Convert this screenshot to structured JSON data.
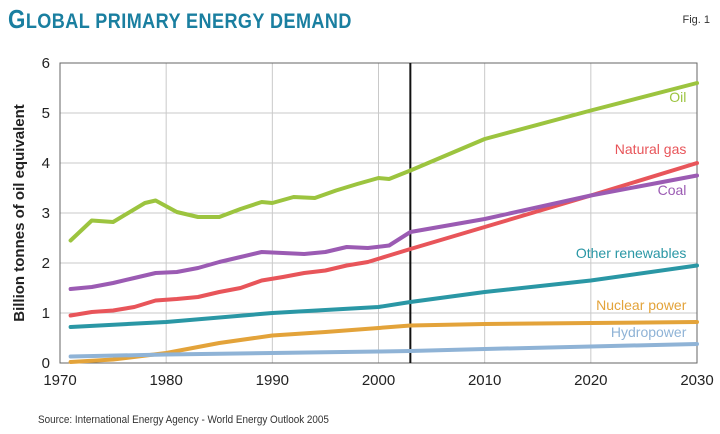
{
  "header": {
    "title": "Global primary energy demand",
    "fig_label": "Fig. 1"
  },
  "source": "Source: International Energy Agency - World Energy Outlook 2005",
  "chart_data": {
    "type": "line",
    "title": "Global primary energy demand",
    "xlabel": "",
    "ylabel": "Billion tonnes of oil equivalent",
    "xlim": [
      1970,
      2030
    ],
    "ylim": [
      0,
      6
    ],
    "x_ticks": [
      1970,
      1980,
      1990,
      2000,
      2010,
      2020,
      2030
    ],
    "y_ticks": [
      0,
      1,
      2,
      3,
      4,
      5,
      6
    ],
    "grid": true,
    "divider_year": 2003,
    "series": [
      {
        "name": "Oil",
        "color": "#9cc43f",
        "x": [
          1971,
          1973,
          1975,
          1978,
          1979,
          1981,
          1983,
          1985,
          1987,
          1989,
          1990,
          1992,
          1994,
          1996,
          1998,
          2000,
          2001,
          2003,
          2010,
          2020,
          2030
        ],
        "y": [
          2.45,
          2.85,
          2.82,
          3.2,
          3.25,
          3.02,
          2.92,
          2.92,
          3.08,
          3.22,
          3.2,
          3.32,
          3.3,
          3.45,
          3.58,
          3.7,
          3.68,
          3.85,
          4.48,
          5.05,
          5.6
        ]
      },
      {
        "name": "Natural gas",
        "color": "#e8555a",
        "x": [
          1971,
          1973,
          1975,
          1977,
          1979,
          1981,
          1983,
          1985,
          1987,
          1989,
          1991,
          1993,
          1995,
          1997,
          1999,
          2001,
          2003,
          2010,
          2020,
          2030
        ],
        "y": [
          0.95,
          1.02,
          1.05,
          1.12,
          1.25,
          1.28,
          1.32,
          1.42,
          1.5,
          1.65,
          1.72,
          1.8,
          1.85,
          1.95,
          2.02,
          2.15,
          2.28,
          2.72,
          3.35,
          4.0
        ]
      },
      {
        "name": "Coal",
        "color": "#9b5bb3",
        "x": [
          1971,
          1973,
          1975,
          1977,
          1979,
          1981,
          1983,
          1985,
          1987,
          1989,
          1991,
          1993,
          1995,
          1997,
          1999,
          2001,
          2003,
          2010,
          2020,
          2030
        ],
        "y": [
          1.48,
          1.52,
          1.6,
          1.7,
          1.8,
          1.82,
          1.9,
          2.02,
          2.12,
          2.22,
          2.2,
          2.18,
          2.22,
          2.32,
          2.3,
          2.35,
          2.62,
          2.88,
          3.35,
          3.75
        ]
      },
      {
        "name": "Other renewables",
        "color": "#2a97a5",
        "x": [
          1971,
          1980,
          1990,
          2000,
          2003,
          2010,
          2020,
          2030
        ],
        "y": [
          0.72,
          0.82,
          1.0,
          1.12,
          1.22,
          1.42,
          1.65,
          1.95
        ]
      },
      {
        "name": "Nuclear power",
        "color": "#e3a33a",
        "x": [
          1971,
          1975,
          1980,
          1985,
          1990,
          1995,
          2000,
          2003,
          2010,
          2020,
          2030
        ],
        "y": [
          0.02,
          0.07,
          0.2,
          0.4,
          0.55,
          0.62,
          0.7,
          0.75,
          0.78,
          0.8,
          0.82
        ]
      },
      {
        "name": "Hydropower",
        "color": "#8fb3d6",
        "x": [
          1971,
          1980,
          1990,
          2000,
          2003,
          2010,
          2020,
          2030
        ],
        "y": [
          0.13,
          0.17,
          0.2,
          0.23,
          0.24,
          0.28,
          0.33,
          0.38
        ]
      }
    ]
  }
}
